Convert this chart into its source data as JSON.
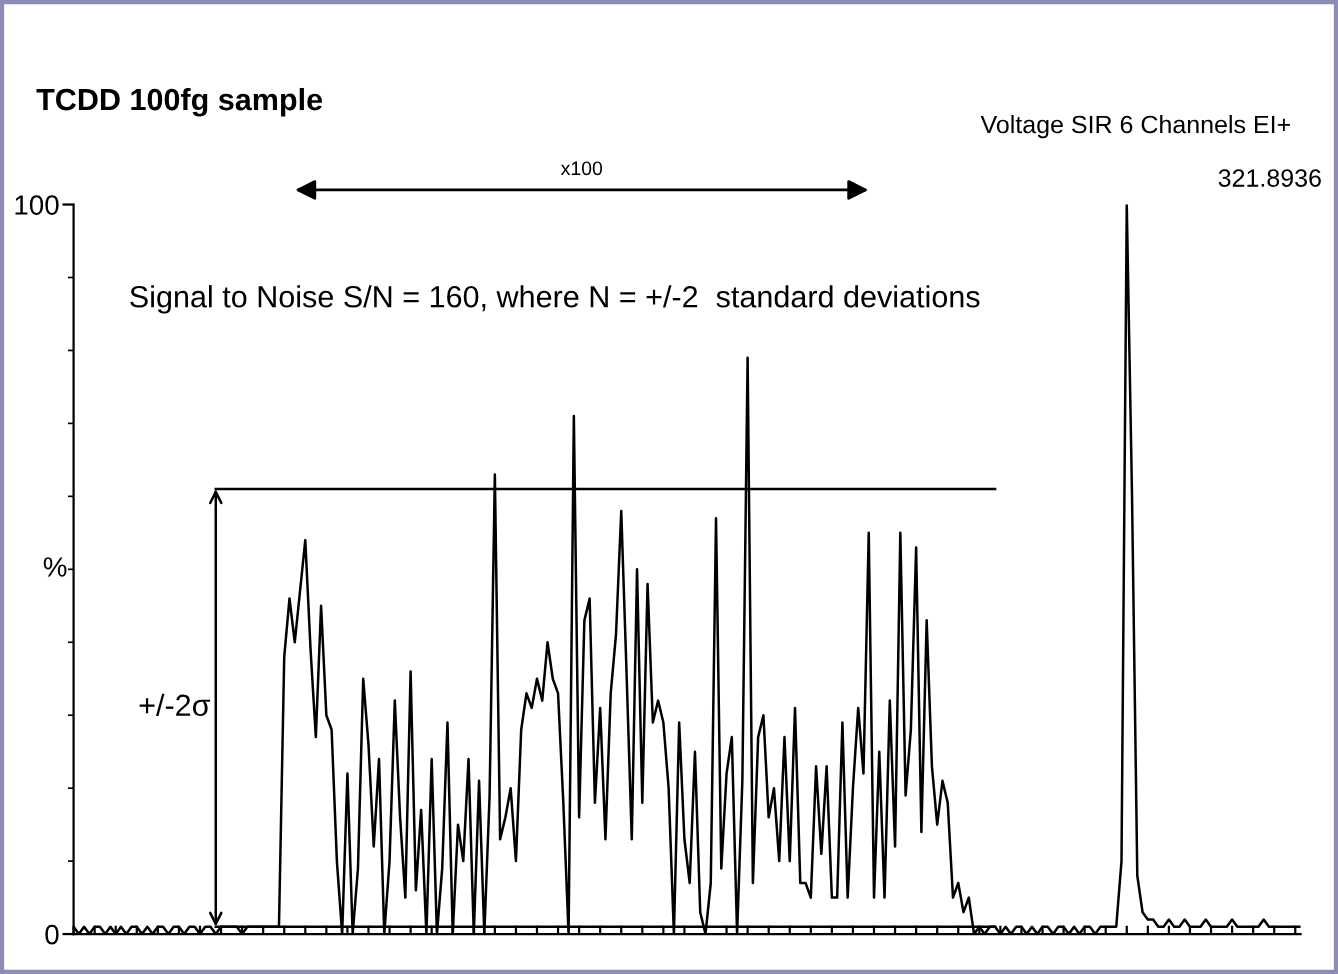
{
  "chart_data": {
    "type": "line",
    "title": "TCDD 100fg sample",
    "ylabel": "%",
    "annotations": [
      "x100",
      "Signal to Noise S/N = 160, where N = +/-2  standard deviations",
      "+/-2σ",
      "Voltage SIR 6 Channels EI+",
      "321.8936"
    ],
    "categories": [
      null,
      null,
      null,
      null,
      null,
      null,
      null,
      null,
      null,
      null,
      null,
      null,
      null,
      null,
      null,
      null,
      null,
      null,
      null,
      null,
      null,
      null,
      null,
      null,
      null,
      null,
      null,
      null,
      null,
      null,
      null,
      null,
      null,
      null,
      null,
      null,
      null,
      null,
      null,
      null,
      null,
      null,
      null,
      null,
      null,
      null,
      null,
      null,
      null,
      null,
      null,
      null,
      null,
      null,
      null,
      null,
      null,
      null,
      null,
      null,
      null,
      null,
      null,
      null,
      null,
      null,
      null,
      null,
      null,
      null,
      null,
      null,
      null,
      null,
      null,
      null,
      null,
      null,
      null,
      null,
      null,
      null,
      null,
      null,
      null,
      null,
      null,
      null,
      null,
      null,
      null,
      null,
      null,
      null,
      null,
      null,
      null,
      null,
      null,
      null,
      null,
      null,
      null,
      null,
      null,
      null,
      null,
      null,
      null,
      null,
      null,
      null,
      null,
      null,
      null,
      null,
      null,
      null,
      null,
      null,
      null,
      null,
      null,
      null,
      null,
      null,
      null,
      null,
      null,
      null,
      null,
      null,
      null,
      null,
      null,
      null,
      null,
      null,
      null,
      null,
      null,
      null,
      null,
      null,
      null,
      null,
      null,
      null,
      null,
      null,
      null,
      null,
      null,
      null,
      null,
      null,
      null,
      null,
      null,
      null,
      null,
      null,
      null,
      null,
      null,
      null,
      null,
      null,
      null,
      null,
      null,
      null,
      null,
      null,
      null,
      null,
      null,
      null,
      null,
      null,
      null,
      null,
      null,
      null,
      null,
      null,
      null,
      null,
      null,
      null,
      null,
      null,
      null,
      null,
      null,
      null,
      null,
      null,
      null,
      null,
      null,
      null,
      null,
      null,
      null,
      null,
      null,
      null,
      null,
      null,
      null,
      null,
      null,
      null,
      null,
      null,
      null,
      null,
      null,
      null,
      null,
      null,
      null,
      null,
      null,
      null,
      null,
      null,
      null,
      null,
      null,
      null,
      null,
      null
    ],
    "series": [
      {
        "color": "#000000",
        "values": [
          1,
          0,
          1,
          0,
          1,
          1,
          0,
          1,
          0,
          1,
          0,
          1,
          1,
          0,
          1,
          0,
          1,
          1,
          0,
          1,
          1,
          0,
          1,
          1,
          0,
          1,
          1,
          0,
          1,
          1,
          1,
          1,
          0,
          1,
          1,
          1,
          1,
          1,
          1,
          1,
          38,
          46,
          40,
          47,
          54,
          39,
          27,
          45,
          30,
          28,
          10,
          0,
          22,
          0,
          9,
          35,
          26,
          12,
          24,
          0,
          10,
          32,
          16,
          5,
          36,
          6,
          17,
          0,
          24,
          0,
          9,
          29,
          0,
          15,
          10,
          24,
          0,
          21,
          0,
          19,
          63,
          13,
          16,
          20,
          10,
          28,
          33,
          31,
          35,
          32,
          40,
          35,
          33,
          18,
          0,
          71,
          16,
          43,
          46,
          18,
          31,
          13,
          33,
          41,
          58,
          36,
          13,
          50,
          18,
          48,
          29,
          32,
          29,
          20,
          0,
          29,
          13,
          7,
          25,
          3,
          0,
          7,
          57,
          9,
          22,
          27,
          0,
          21,
          79,
          7,
          27,
          30,
          16,
          20,
          10,
          27,
          10,
          31,
          7,
          7,
          5,
          23,
          11,
          23,
          5,
          5,
          29,
          5,
          20,
          31,
          22,
          55,
          5,
          25,
          5,
          32,
          12,
          55,
          19,
          28,
          53,
          14,
          43,
          23,
          15,
          21,
          18,
          5,
          7,
          3,
          5,
          0,
          1,
          0,
          1,
          1,
          0,
          1,
          0,
          1,
          1,
          0,
          1,
          0,
          1,
          1,
          0,
          1,
          1,
          0,
          1,
          0,
          1,
          1,
          0,
          1,
          1,
          1,
          1,
          10,
          100,
          60,
          8,
          3,
          2,
          2,
          1,
          1,
          2,
          1,
          1,
          2,
          1,
          1,
          1,
          2,
          1,
          1,
          1,
          1,
          2,
          1,
          1,
          1,
          1,
          1,
          2,
          1,
          1,
          1,
          1,
          1,
          1,
          1
        ]
      }
    ],
    "ylim": [
      0,
      100
    ],
    "yticks": [
      0,
      100
    ],
    "ref_lines": [
      {
        "axis": "y",
        "value": 61,
        "color": "#000000"
      },
      {
        "axis": "y",
        "value": 1,
        "color": "#000000"
      }
    ],
    "grid": false,
    "legend": false
  }
}
